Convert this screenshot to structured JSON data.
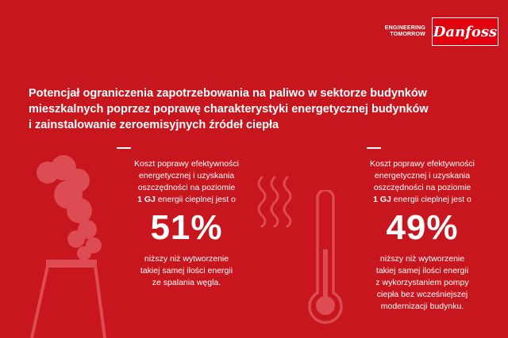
{
  "brand": {
    "tagline_line1": "ENGINEERING",
    "tagline_line2": "TOMORROW",
    "logo_text": "Danfoss"
  },
  "title": {
    "line1": "Potencjał ograniczenia zapotrzebowania na paliwo w sektorze budynków",
    "line2": "mieszkalnych poprzez poprawę charakterystyki energetycznej budynków",
    "line3": "i zainstalowanie zeroemisyjnych źródeł ciepła"
  },
  "left": {
    "intro_line1": "Koszt poprawy efektywności",
    "intro_line2": "energetycznej i uzyskania",
    "intro_line3": "oszczędności na poziomie",
    "intro_bold": "1 GJ",
    "intro_line4_rest": " energii cieplnej jest o",
    "percent": "51%",
    "outro_line1": "niższy niż wytworzenie",
    "outro_line2": "takiej samej ilości energii",
    "outro_line3": "ze spalania węgla."
  },
  "right": {
    "intro_line1": "Koszt poprawy efektywności",
    "intro_line2": "energetycznej i uzyskania",
    "intro_line3": "oszczędności na poziomie",
    "intro_bold": "1 GJ",
    "intro_line4_rest": " energii cieplnej jest o",
    "percent": "49%",
    "outro_line1": "niższy niż wytworzenie",
    "outro_line2": "takiej samej ilości energii",
    "outro_line3": "z wykorzystaniem pompy",
    "outro_line4": "ciepła bez wcześniejszej",
    "outro_line5": "modernizacji budynku."
  },
  "icons": {
    "factory": "factory-smoke-icon",
    "heat": "heat-waves-icon",
    "thermometer": "thermometer-icon"
  },
  "colors": {
    "background": "#c8161e",
    "logo_red": "#e2000f",
    "icon_light": "#dc4c52"
  }
}
